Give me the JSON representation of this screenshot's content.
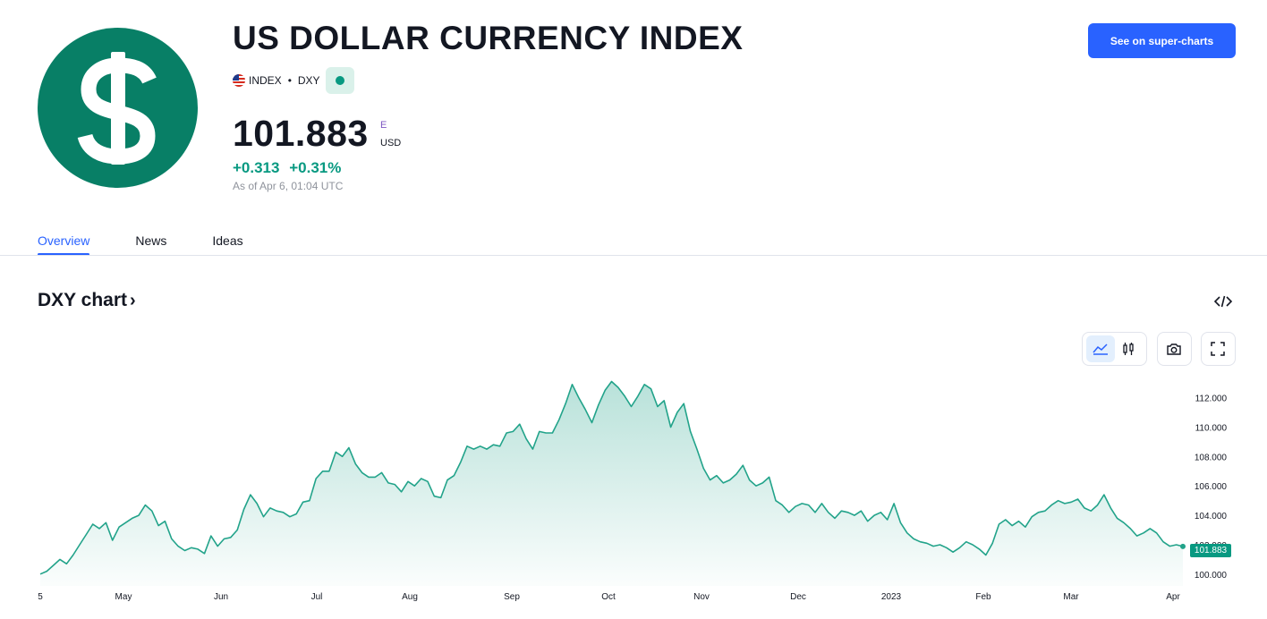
{
  "header": {
    "title": "US DOLLAR CURRENCY INDEX",
    "type_label": "INDEX",
    "ticker": "DXY",
    "logo_icon": "dollar-sign-icon",
    "price": "101.883",
    "price_flag": "E",
    "currency": "USD",
    "change_abs": "+0.313",
    "change_pct": "+0.31%",
    "as_of": "As of Apr 6, 01:04 UTC",
    "cta_label": "See on super-charts"
  },
  "tabs": [
    {
      "label": "Overview",
      "active": true
    },
    {
      "label": "News",
      "active": false
    },
    {
      "label": "Ideas",
      "active": false
    }
  ],
  "chart_section": {
    "title": "DXY chart",
    "chevron": "›",
    "embed_icon": "code-embed-icon",
    "toolbar": [
      {
        "name": "line-chart-icon",
        "active": true
      },
      {
        "name": "candles-icon",
        "active": false
      },
      {
        "name": "camera-icon",
        "active": false
      },
      {
        "name": "fullscreen-icon",
        "active": false
      }
    ]
  },
  "colors": {
    "accent": "#2962ff",
    "positive": "#089981",
    "logo_bg": "#087f66",
    "line": "#22a38a"
  },
  "chart_data": {
    "type": "area",
    "title": "",
    "xlabel": "",
    "ylabel": "",
    "ylim": [
      99.2,
      113.8
    ],
    "y_ticks": [
      "100.000",
      "102.000",
      "104.000",
      "106.000",
      "108.000",
      "110.000",
      "112.000"
    ],
    "x_tick_labels": [
      "5",
      "May",
      "Jun",
      "Jul",
      "Aug",
      "Sep",
      "Oct",
      "Nov",
      "Dec",
      "2023",
      "Feb",
      "Mar",
      "Apr"
    ],
    "last_value_label": "101.883",
    "series": [
      {
        "values": [
          100.0,
          100.2,
          100.6,
          101.0,
          100.7,
          101.3,
          102.0,
          102.7,
          103.4,
          103.1,
          103.5,
          102.3,
          103.2,
          103.5,
          103.8,
          104.0,
          104.7,
          104.3,
          103.3,
          103.6,
          102.4,
          101.9,
          101.6,
          101.8,
          101.7,
          101.4,
          102.6,
          101.9,
          102.4,
          102.5,
          103.0,
          104.4,
          105.4,
          104.8,
          103.9,
          104.5,
          104.3,
          104.2,
          103.9,
          104.1,
          104.9,
          105.0,
          106.5,
          107.0,
          107.0,
          108.3,
          108.0,
          108.6,
          107.5,
          106.9,
          106.6,
          106.6,
          106.9,
          106.2,
          106.1,
          105.6,
          106.3,
          106.0,
          106.5,
          106.3,
          105.3,
          105.2,
          106.4,
          106.7,
          107.6,
          108.7,
          108.5,
          108.7,
          108.5,
          108.8,
          108.7,
          109.6,
          109.7,
          110.2,
          109.2,
          108.5,
          109.7,
          109.6,
          109.6,
          110.5,
          111.6,
          112.9,
          112.0,
          111.2,
          110.3,
          111.5,
          112.5,
          113.1,
          112.7,
          112.1,
          111.4,
          112.1,
          112.9,
          112.6,
          111.4,
          111.8,
          110.0,
          111.0,
          111.6,
          109.7,
          108.5,
          107.2,
          106.4,
          106.7,
          106.2,
          106.4,
          106.8,
          107.4,
          106.4,
          106.0,
          106.2,
          106.6,
          105.0,
          104.7,
          104.2,
          104.6,
          104.8,
          104.7,
          104.2,
          104.8,
          104.2,
          103.8,
          104.3,
          104.2,
          104.0,
          104.3,
          103.6,
          104.0,
          104.2,
          103.7,
          104.8,
          103.5,
          102.8,
          102.4,
          102.2,
          102.1,
          101.9,
          102.0,
          101.8,
          101.5,
          101.8,
          102.2,
          102.0,
          101.7,
          101.3,
          102.1,
          103.4,
          103.7,
          103.3,
          103.6,
          103.2,
          103.9,
          104.2,
          104.3,
          104.7,
          105.0,
          104.8,
          104.9,
          105.1,
          104.5,
          104.3,
          104.7,
          105.4,
          104.5,
          103.8,
          103.5,
          103.1,
          102.6,
          102.8,
          103.1,
          102.8,
          102.2,
          101.9,
          102.0,
          101.883
        ]
      }
    ]
  }
}
